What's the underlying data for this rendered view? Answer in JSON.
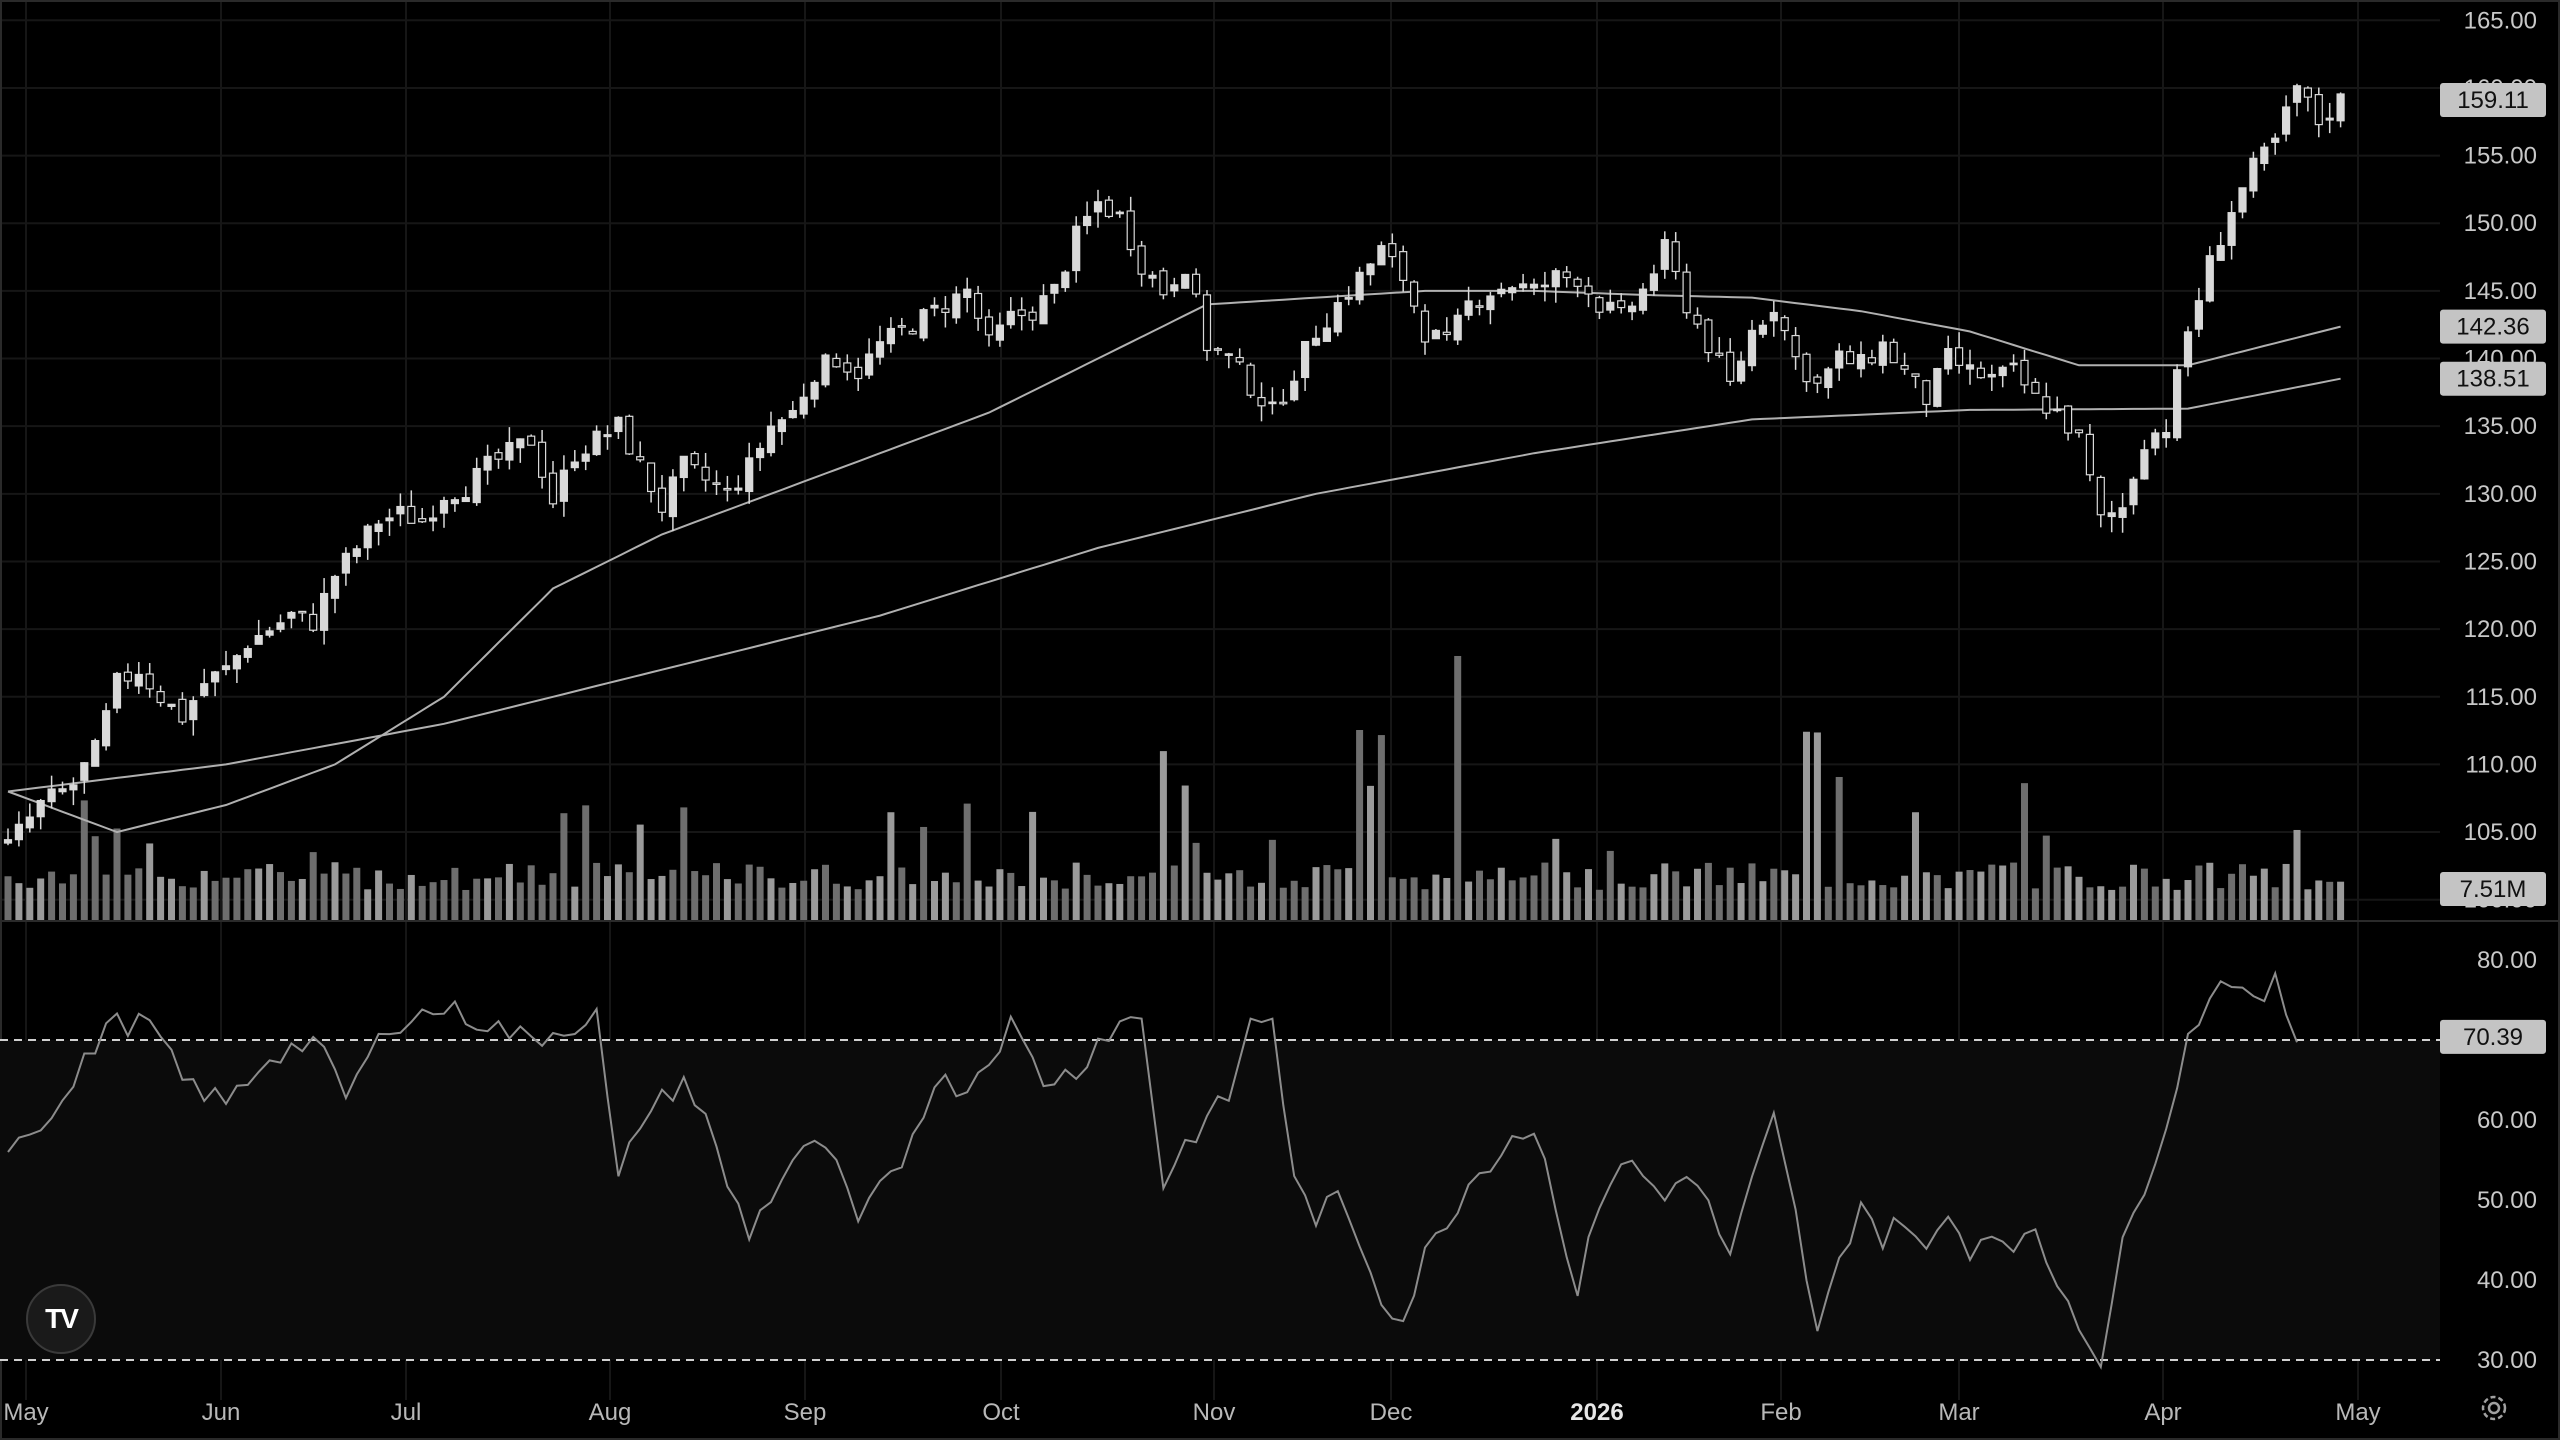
{
  "chart_data": [
    {
      "type": "candlestick",
      "price_axis": {
        "ticks": [
          "165.00",
          "160.00",
          "155.00",
          "150.00",
          "145.00",
          "140.00",
          "135.00",
          "130.00",
          "125.00",
          "120.00",
          "115.00",
          "110.00",
          "105.00",
          "100.00"
        ],
        "range": [
          98.5,
          166.5
        ]
      },
      "x_axis": {
        "labels": [
          "May",
          "Jun",
          "Jul",
          "Aug",
          "Sep",
          "Oct",
          "Nov",
          "Dec",
          "2026",
          "Feb",
          "Mar",
          "Apr",
          "May"
        ],
        "bold_label": "2026"
      },
      "price_path": [
        [
          0,
          104
        ],
        [
          3,
          107
        ],
        [
          6,
          108.5
        ],
        [
          8,
          111
        ],
        [
          10,
          116
        ],
        [
          12,
          117
        ],
        [
          14,
          115
        ],
        [
          16,
          113.5
        ],
        [
          18,
          116
        ],
        [
          20,
          117
        ],
        [
          22,
          119
        ],
        [
          24,
          120
        ],
        [
          26,
          121
        ],
        [
          28,
          120.5
        ],
        [
          30,
          124
        ],
        [
          32,
          126
        ],
        [
          34,
          128
        ],
        [
          36,
          128.5
        ],
        [
          38,
          128
        ],
        [
          40,
          130
        ],
        [
          42,
          130.5
        ],
        [
          44,
          132
        ],
        [
          46,
          133
        ],
        [
          48,
          134
        ],
        [
          50,
          129.5
        ],
        [
          52,
          133
        ],
        [
          54,
          134
        ],
        [
          56,
          135
        ],
        [
          58,
          132
        ],
        [
          60,
          129
        ],
        [
          62,
          132
        ],
        [
          64,
          131
        ],
        [
          66,
          130
        ],
        [
          68,
          132
        ],
        [
          70,
          135
        ],
        [
          72,
          136
        ],
        [
          74,
          139
        ],
        [
          76,
          140
        ],
        [
          78,
          139
        ],
        [
          80,
          141
        ],
        [
          82,
          142
        ],
        [
          84,
          143
        ],
        [
          86,
          144
        ],
        [
          88,
          145
        ],
        [
          90,
          141
        ],
        [
          92,
          143
        ],
        [
          94,
          143.5
        ],
        [
          96,
          145
        ],
        [
          98,
          149
        ],
        [
          100,
          151.5
        ],
        [
          102,
          150.5
        ],
        [
          104,
          147
        ],
        [
          106,
          145
        ],
        [
          108,
          147
        ],
        [
          110,
          141
        ],
        [
          112,
          140
        ],
        [
          114,
          138
        ],
        [
          116,
          136
        ],
        [
          118,
          139
        ],
        [
          120,
          142
        ],
        [
          122,
          144
        ],
        [
          124,
          146
        ],
        [
          126,
          148
        ],
        [
          128,
          146
        ],
        [
          130,
          142
        ],
        [
          132,
          141
        ],
        [
          134,
          144
        ],
        [
          136,
          145
        ],
        [
          138,
          145.5
        ],
        [
          140,
          145
        ],
        [
          142,
          146
        ],
        [
          144,
          146
        ],
        [
          146,
          144
        ],
        [
          148,
          143
        ],
        [
          150,
          145
        ],
        [
          152,
          148
        ],
        [
          154,
          144
        ],
        [
          156,
          141
        ],
        [
          158,
          138
        ],
        [
          160,
          142
        ],
        [
          162,
          144
        ],
        [
          164,
          140
        ],
        [
          166,
          138
        ],
        [
          168,
          140
        ],
        [
          170,
          139.5
        ],
        [
          172,
          141
        ],
        [
          174,
          139
        ],
        [
          176,
          137
        ],
        [
          178,
          140
        ],
        [
          180,
          139
        ],
        [
          182,
          138.5
        ],
        [
          184,
          139
        ],
        [
          186,
          137
        ],
        [
          188,
          136
        ],
        [
          190,
          134
        ],
        [
          192,
          128
        ],
        [
          194,
          129
        ],
        [
          196,
          134
        ],
        [
          198,
          135
        ],
        [
          200,
          142
        ],
        [
          202,
          147
        ],
        [
          204,
          151
        ],
        [
          206,
          154
        ],
        [
          208,
          156
        ],
        [
          210,
          160
        ],
        [
          212,
          157.5
        ],
        [
          214,
          159.11
        ]
      ],
      "series": [
        {
          "name": "",
          "type": "moving_average",
          "last_value": 142.36,
          "path": [
            [
              0,
              108
            ],
            [
              10,
              105
            ],
            [
              20,
              107
            ],
            [
              30,
              110
            ],
            [
              40,
              115
            ],
            [
              50,
              123
            ],
            [
              60,
              127
            ],
            [
              70,
              130
            ],
            [
              80,
              133
            ],
            [
              90,
              136
            ],
            [
              100,
              140
            ],
            [
              110,
              144
            ],
            [
              120,
              144.5
            ],
            [
              130,
              145
            ],
            [
              140,
              145
            ],
            [
              150,
              144.7
            ],
            [
              160,
              144.5
            ],
            [
              170,
              143.5
            ],
            [
              180,
              142
            ],
            [
              190,
              139.5
            ],
            [
              200,
              139.5
            ],
            [
              214,
              142.36
            ]
          ]
        },
        {
          "name": "",
          "type": "moving_average",
          "last_value": 138.51,
          "path": [
            [
              0,
              108
            ],
            [
              20,
              110
            ],
            [
              40,
              113
            ],
            [
              60,
              117
            ],
            [
              80,
              121
            ],
            [
              100,
              126
            ],
            [
              120,
              130
            ],
            [
              140,
              133
            ],
            [
              160,
              135.5
            ],
            [
              180,
              136.2
            ],
            [
              200,
              136.3
            ],
            [
              214,
              138.51
            ]
          ]
        }
      ],
      "last_price": "159.11",
      "ma_tags": [
        "142.36",
        "138.51"
      ],
      "volume": {
        "last_value": "7.51M"
      }
    },
    {
      "type": "line",
      "y_axis": {
        "ticks": [
          "80.00",
          "70.00",
          "60.00",
          "50.00",
          "40.00",
          "30.00"
        ],
        "range": [
          25,
          85
        ]
      },
      "bands": [
        70,
        30
      ],
      "last_value": "70.39",
      "path": [
        [
          0,
          57
        ],
        [
          5,
          62
        ],
        [
          9,
          72
        ],
        [
          13,
          72
        ],
        [
          16,
          65
        ],
        [
          20,
          62
        ],
        [
          24,
          68
        ],
        [
          28,
          70
        ],
        [
          31,
          63
        ],
        [
          35,
          72
        ],
        [
          40,
          74
        ],
        [
          44,
          72
        ],
        [
          48,
          70
        ],
        [
          52,
          72
        ],
        [
          54,
          73
        ],
        [
          56,
          52
        ],
        [
          58,
          60
        ],
        [
          62,
          65
        ],
        [
          64,
          60
        ],
        [
          66,
          52
        ],
        [
          68,
          46
        ],
        [
          72,
          55
        ],
        [
          75,
          57
        ],
        [
          78,
          47
        ],
        [
          82,
          55
        ],
        [
          85,
          65
        ],
        [
          88,
          64
        ],
        [
          92,
          72
        ],
        [
          95,
          65
        ],
        [
          98,
          66
        ],
        [
          100,
          70
        ],
        [
          102,
          72
        ],
        [
          104,
          73
        ],
        [
          106,
          52
        ],
        [
          108,
          57
        ],
        [
          112,
          63
        ],
        [
          114,
          72
        ],
        [
          116,
          73
        ],
        [
          118,
          52
        ],
        [
          120,
          48
        ],
        [
          122,
          50
        ],
        [
          124,
          45
        ],
        [
          126,
          38
        ],
        [
          128,
          35
        ],
        [
          130,
          43
        ],
        [
          134,
          52
        ],
        [
          138,
          58
        ],
        [
          140,
          59
        ],
        [
          142,
          50
        ],
        [
          144,
          38
        ],
        [
          146,
          50
        ],
        [
          148,
          55
        ],
        [
          150,
          53
        ],
        [
          152,
          50
        ],
        [
          154,
          54
        ],
        [
          156,
          49
        ],
        [
          158,
          43
        ],
        [
          160,
          52
        ],
        [
          162,
          60
        ],
        [
          164,
          48
        ],
        [
          166,
          33
        ],
        [
          168,
          42
        ],
        [
          170,
          50
        ],
        [
          172,
          45
        ],
        [
          174,
          48
        ],
        [
          176,
          43
        ],
        [
          178,
          48
        ],
        [
          180,
          44
        ],
        [
          182,
          46
        ],
        [
          184,
          45
        ],
        [
          186,
          45
        ],
        [
          188,
          40
        ],
        [
          190,
          35
        ],
        [
          192,
          30
        ],
        [
          194,
          44
        ],
        [
          196,
          52
        ],
        [
          198,
          60
        ],
        [
          200,
          70
        ],
        [
          202,
          76
        ],
        [
          204,
          78
        ],
        [
          206,
          74
        ],
        [
          208,
          77
        ],
        [
          210,
          70.39
        ]
      ]
    }
  ],
  "icons": {
    "logo": "tradingview-logo-icon",
    "settings": "settings-gear-icon"
  },
  "logo_text": "TV",
  "colors": {
    "background": "#000000",
    "candle": "#d9d9d9",
    "volume": "#8a8a8a",
    "ma": "#b0b0b0",
    "rsi": "#8c8c8c",
    "grid": "#161616"
  }
}
